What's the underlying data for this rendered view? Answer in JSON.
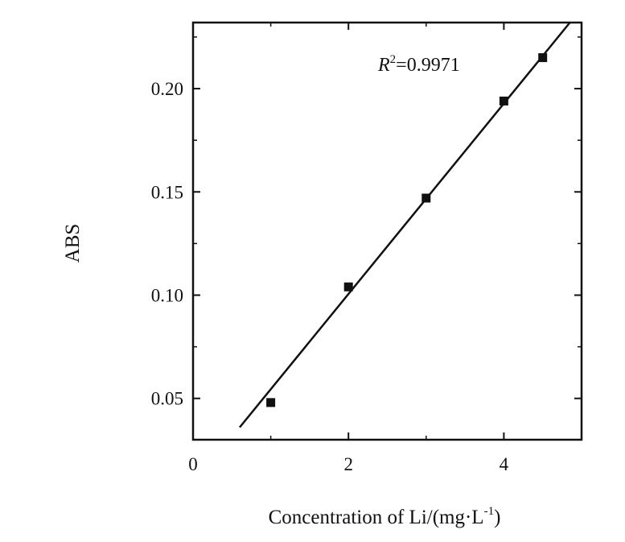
{
  "chart_data": {
    "type": "scatter",
    "xlabel": "Concentration of Li/(mg·L",
    "xlabel_sup": "-1",
    "xlabel_close": ")",
    "ylabel": "ABS",
    "x_ticks": [
      "0",
      "2",
      "4"
    ],
    "y_ticks": [
      "0.05",
      "0.10",
      "0.15",
      "0.20"
    ],
    "xlim": [
      0,
      5.0
    ],
    "ylim": [
      0.03,
      0.232
    ],
    "series": [
      {
        "x": [
          1.0,
          2.0,
          3.0,
          4.0,
          4.5
        ],
        "y": [
          0.048,
          0.104,
          0.147,
          0.194,
          0.215
        ]
      }
    ],
    "fit_line": {
      "x": [
        0.6,
        4.85
      ],
      "y": [
        0.036,
        0.232
      ]
    },
    "annotation": {
      "r_label": "R",
      "r_sup": "2",
      "value": "=0.9971"
    },
    "grid": false,
    "legend": "none",
    "colors": {
      "marker": "#111111",
      "line": "#111111",
      "axis": "#111111"
    }
  }
}
